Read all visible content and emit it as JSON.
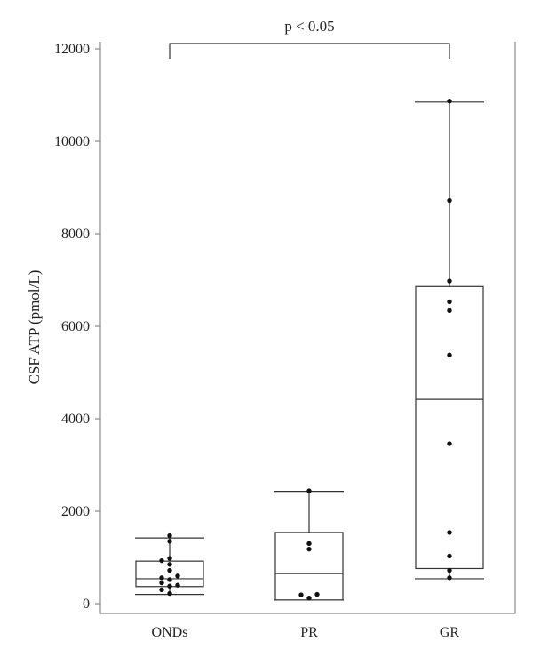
{
  "chart_data": {
    "type": "box",
    "ylabel": "CSF ATP (pmol/L)",
    "xlabel": "",
    "ylim": [
      0,
      12000
    ],
    "yticks": [
      0,
      2000,
      4000,
      6000,
      8000,
      10000,
      12000
    ],
    "ytick_labels": [
      "0",
      "2000",
      "4000",
      "6000",
      "8000",
      "10000",
      "12000"
    ],
    "categories": [
      "ONDs",
      "PR",
      "GR"
    ],
    "groups": [
      {
        "name": "ONDs",
        "whisker_low": 200,
        "q1": 370,
        "median": 540,
        "q3": 920,
        "whisker_high": 1420,
        "points": [
          220,
          300,
          380,
          400,
          450,
          520,
          560,
          600,
          720,
          850,
          930,
          980,
          1350,
          1470
        ]
      },
      {
        "name": "PR",
        "whisker_low": 80,
        "q1": 80,
        "median": 650,
        "q3": 1540,
        "whisker_high": 2430,
        "points": [
          120,
          190,
          200,
          1180,
          1300,
          2440
        ]
      },
      {
        "name": "GR",
        "whisker_low": 540,
        "q1": 760,
        "median": 4420,
        "q3": 6860,
        "whisker_high": 10850,
        "points": [
          560,
          720,
          1030,
          1540,
          3460,
          5380,
          6340,
          6530,
          6980,
          8720,
          10870
        ]
      }
    ],
    "annotation": {
      "text": "p < 0.05",
      "from": "ONDs",
      "to": "GR",
      "level": 12000
    },
    "grid": false,
    "legend": "none"
  }
}
